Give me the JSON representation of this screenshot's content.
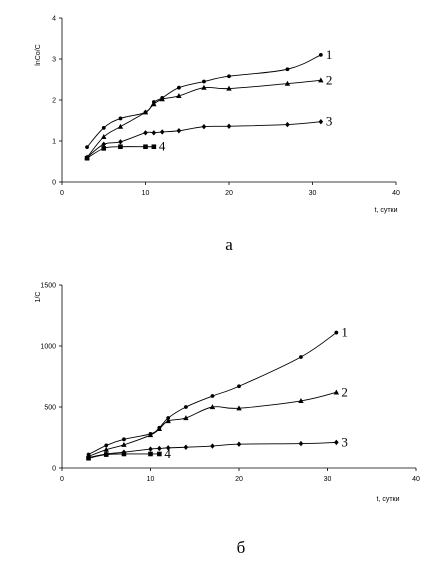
{
  "chart_data": [
    {
      "type": "line",
      "caption": "а",
      "xlabel": "t, сутки",
      "ylabel": "lnCo/C",
      "xlim": [
        0,
        40
      ],
      "ylim": [
        0,
        4
      ],
      "x_ticks": [
        "0",
        "10",
        "20",
        "30",
        "40"
      ],
      "y_ticks": [
        "0",
        "1",
        "2",
        "3",
        "4"
      ],
      "grid": false,
      "series": [
        {
          "name": "1",
          "marker": "circle",
          "x": [
            3,
            5,
            7,
            10,
            11,
            12,
            14,
            17,
            20,
            27,
            31
          ],
          "y": [
            0.85,
            1.32,
            1.55,
            1.7,
            1.95,
            2.05,
            2.3,
            2.45,
            2.58,
            2.75,
            3.1
          ]
        },
        {
          "name": "2",
          "marker": "triangle",
          "x": [
            3,
            5,
            7,
            10,
            11,
            12,
            14,
            17,
            20,
            27,
            31
          ],
          "y": [
            0.6,
            1.1,
            1.35,
            1.7,
            1.9,
            2.02,
            2.1,
            2.3,
            2.28,
            2.4,
            2.48
          ]
        },
        {
          "name": "3",
          "marker": "diamond",
          "x": [
            3,
            5,
            7,
            10,
            11,
            12,
            14,
            17,
            20,
            27,
            31
          ],
          "y": [
            0.6,
            0.92,
            0.98,
            1.2,
            1.2,
            1.22,
            1.25,
            1.35,
            1.36,
            1.4,
            1.47
          ]
        },
        {
          "name": "4",
          "marker": "square",
          "x": [
            3,
            5,
            7,
            10,
            11
          ],
          "y": [
            0.58,
            0.82,
            0.86,
            0.86,
            0.86
          ]
        }
      ]
    },
    {
      "type": "line",
      "caption": "б",
      "xlabel": "t, сутки",
      "ylabel": "1/C",
      "xlim": [
        0,
        40
      ],
      "ylim": [
        0,
        1500
      ],
      "x_ticks": [
        "0",
        "10",
        "20",
        "30",
        "40"
      ],
      "y_ticks": [
        "0",
        "500",
        "1000",
        "1500"
      ],
      "grid": false,
      "series": [
        {
          "name": "1",
          "marker": "circle",
          "x": [
            3,
            5,
            7,
            10,
            11,
            12,
            14,
            17,
            20,
            27,
            31
          ],
          "y": [
            110,
            185,
            235,
            280,
            330,
            410,
            500,
            590,
            670,
            910,
            1110
          ]
        },
        {
          "name": "2",
          "marker": "triangle",
          "x": [
            3,
            5,
            7,
            10,
            11,
            12,
            14,
            17,
            20,
            27,
            31
          ],
          "y": [
            95,
            150,
            190,
            270,
            320,
            385,
            410,
            500,
            490,
            550,
            620
          ]
        },
        {
          "name": "3",
          "marker": "diamond",
          "x": [
            3,
            5,
            7,
            10,
            11,
            12,
            14,
            17,
            20,
            27,
            31
          ],
          "y": [
            85,
            115,
            130,
            155,
            160,
            165,
            170,
            180,
            195,
            200,
            210
          ]
        },
        {
          "name": "4",
          "marker": "square",
          "x": [
            3,
            5,
            7,
            10,
            11
          ],
          "y": [
            80,
            110,
            115,
            115,
            115
          ]
        }
      ]
    }
  ]
}
